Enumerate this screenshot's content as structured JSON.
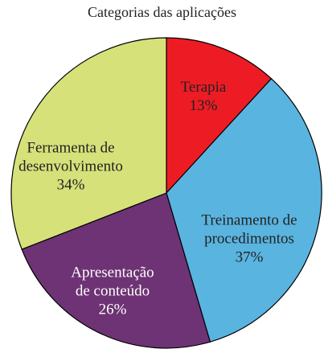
{
  "chart_data": {
    "type": "pie",
    "title": "Categorias das aplicações",
    "categories": [
      "Terapia",
      "Treinamento de procedimentos",
      "Apresentação de conteúdo",
      "Ferramenta de desenvolvimento"
    ],
    "values": [
      13,
      37,
      26,
      34
    ],
    "value_labels": [
      "13%",
      "37%",
      "26%",
      "34%"
    ],
    "colors": [
      "#ed1c24",
      "#5ab4e0",
      "#6e3374",
      "#d6e17a"
    ]
  }
}
